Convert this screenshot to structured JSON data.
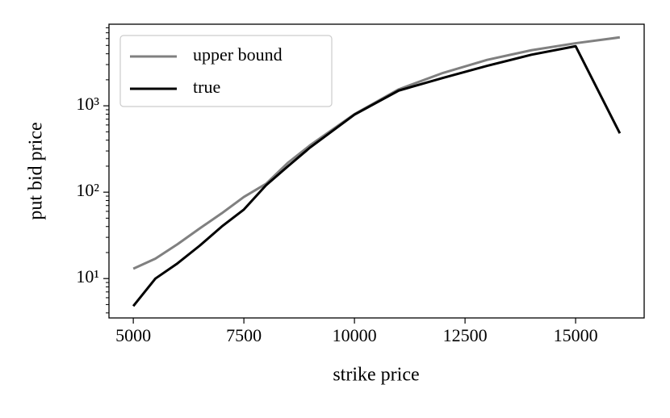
{
  "chart_data": {
    "type": "line",
    "xlabel": "strike price",
    "ylabel": "put bid price",
    "x": [
      5000,
      5500,
      6000,
      6500,
      7000,
      7500,
      8000,
      8500,
      9000,
      10000,
      11000,
      12000,
      13000,
      14000,
      15000,
      16000
    ],
    "series": [
      {
        "name": "upper bound",
        "color": "#808080",
        "values": [
          13,
          17,
          25,
          38,
          57,
          88,
          125,
          220,
          350,
          800,
          1550,
          2400,
          3400,
          4400,
          5300,
          6200
        ]
      },
      {
        "name": "true",
        "color": "#000000",
        "values": [
          4.8,
          10,
          15,
          24,
          40,
          63,
          120,
          200,
          330,
          790,
          1500,
          2100,
          2900,
          3900,
          4900,
          480
        ]
      }
    ],
    "xlim": [
      4450,
      16550
    ],
    "xticks": [
      5000,
      7500,
      10000,
      12500,
      15000
    ],
    "ylim": [
      3.5,
      8800
    ],
    "yscale": "log",
    "yticks": [
      {
        "value": 10,
        "label": "10¹"
      },
      {
        "value": 100,
        "label": "10²"
      },
      {
        "value": 1000,
        "label": "10³"
      }
    ],
    "legend": "upper left"
  }
}
